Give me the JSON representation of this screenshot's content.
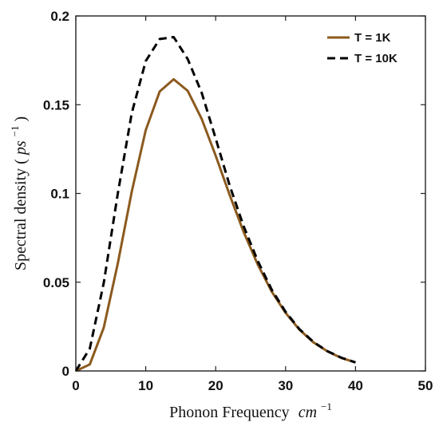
{
  "chart_data": {
    "type": "line",
    "xlabel": "Phonon Frequency",
    "xlabel_unit": "cm",
    "xlabel_unit_exp": "−1",
    "ylabel": "Spectral density (",
    "ylabel_unit": "ps",
    "ylabel_unit_exp": "−1",
    "ylabel_close": ")",
    "xlim": [
      0,
      50
    ],
    "ylim": [
      0,
      0.2
    ],
    "xticks": [
      0,
      10,
      20,
      30,
      40,
      50
    ],
    "yticks": [
      0,
      0.05,
      0.1,
      0.15,
      0.2
    ],
    "xtick_labels": [
      "0",
      "10",
      "20",
      "30",
      "40",
      "50"
    ],
    "ytick_labels": [
      "0",
      "0.05",
      "0.1",
      "0.15",
      "0.2"
    ],
    "legend_position": "top-right",
    "grid": false,
    "series": [
      {
        "name": "T = 1K",
        "color": "#8B5A1E",
        "dash": "solid",
        "x": [
          0,
          2,
          4,
          6,
          8,
          10,
          12,
          14,
          16,
          18,
          20,
          22,
          24,
          26,
          28,
          30,
          32,
          34,
          36,
          38,
          40
        ],
        "y": [
          0,
          0.0037,
          0.0244,
          0.0606,
          0.1011,
          0.1357,
          0.1575,
          0.1643,
          0.1578,
          0.142,
          0.1213,
          0.0992,
          0.0784,
          0.0601,
          0.0448,
          0.0327,
          0.0232,
          0.0161,
          0.011,
          0.0073,
          0.0048
        ]
      },
      {
        "name": "T = 10K",
        "color": "#000000",
        "dash": "dashed",
        "x": [
          0,
          2,
          4,
          6,
          8,
          10,
          12,
          14,
          16,
          18,
          20,
          22,
          24,
          26,
          28,
          30,
          32,
          34,
          36,
          38,
          40
        ],
        "y": [
          0,
          0.0126,
          0.0496,
          0.1,
          0.1453,
          0.1746,
          0.187,
          0.1881,
          0.1757,
          0.1567,
          0.131,
          0.1045,
          0.0816,
          0.0621,
          0.0459,
          0.0333,
          0.0235,
          0.0163,
          0.0111,
          0.0074,
          0.0048
        ]
      }
    ]
  }
}
